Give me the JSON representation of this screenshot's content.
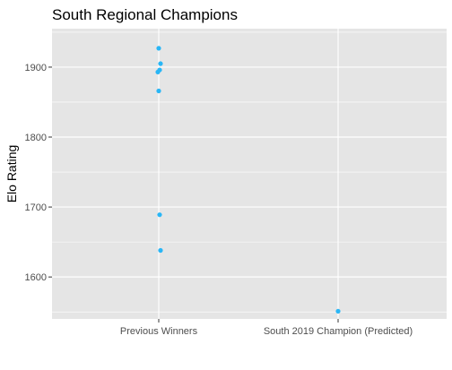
{
  "chart_data": {
    "type": "scatter",
    "title": "South Regional Champions",
    "xlabel": "",
    "ylabel": "Elo Rating",
    "categories": [
      "Previous Winners",
      "South 2019 Champion (Predicted)"
    ],
    "yticks": [
      1600,
      1700,
      1800,
      1900
    ],
    "ylim": [
      1540,
      1955
    ],
    "grid": true,
    "legend": "none",
    "point_color": "#29B6F6",
    "panel_color": "#E5E5E5",
    "grid_color": "#FFFFFF",
    "series": [
      {
        "points": [
          {
            "category": "Previous Winners",
            "y": 1927
          },
          {
            "category": "Previous Winners",
            "y": 1905
          },
          {
            "category": "Previous Winners",
            "y": 1896
          },
          {
            "category": "Previous Winners",
            "y": 1893
          },
          {
            "category": "Previous Winners",
            "y": 1866
          },
          {
            "category": "Previous Winners",
            "y": 1689
          },
          {
            "category": "Previous Winners",
            "y": 1638
          },
          {
            "category": "South 2019 Champion (Predicted)",
            "y": 1551
          }
        ]
      }
    ]
  }
}
